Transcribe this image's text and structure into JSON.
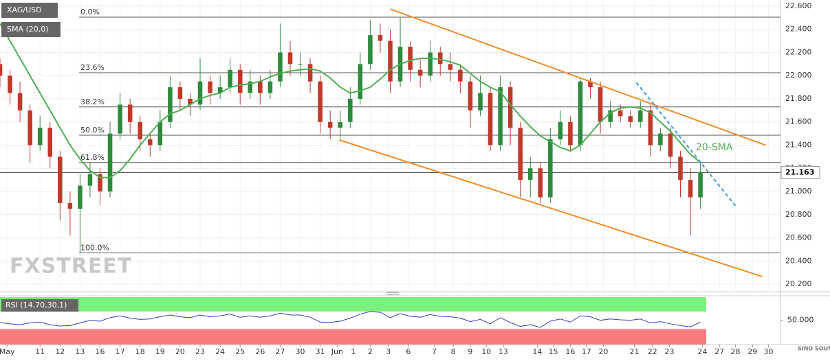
{
  "chart_data": {
    "type": "candlestick",
    "title": "XAG/USD",
    "indicator_label": "SMA (20,0)",
    "annotation": "20-SMA",
    "watermark": "FXSTREET",
    "logo": "SINO SOUND",
    "xlim": [
      0,
      78
    ],
    "xticks": [
      {
        "value": 0.7,
        "label": "May"
      },
      {
        "value": 4,
        "label": "11"
      },
      {
        "value": 6,
        "label": "12"
      },
      {
        "value": 8,
        "label": "13"
      },
      {
        "value": 10,
        "label": "16"
      },
      {
        "value": 12,
        "label": "17"
      },
      {
        "value": 14,
        "label": "18"
      },
      {
        "value": 16,
        "label": "19"
      },
      {
        "value": 18,
        "label": "20"
      },
      {
        "value": 20,
        "label": "23"
      },
      {
        "value": 22,
        "label": "24"
      },
      {
        "value": 24,
        "label": "25"
      },
      {
        "value": 26,
        "label": "26"
      },
      {
        "value": 28,
        "label": "27"
      },
      {
        "value": 30,
        "label": "30"
      },
      {
        "value": 32,
        "label": "31"
      },
      {
        "value": 33.7,
        "label": "Jun"
      },
      {
        "value": 35.3,
        "label": "1"
      },
      {
        "value": 37,
        "label": "2"
      },
      {
        "value": 38.8,
        "label": "3"
      },
      {
        "value": 40.8,
        "label": "6"
      },
      {
        "value": 43.4,
        "label": "7"
      },
      {
        "value": 45.3,
        "label": "8"
      },
      {
        "value": 47,
        "label": "9"
      },
      {
        "value": 48.6,
        "label": "10"
      },
      {
        "value": 50.3,
        "label": "13"
      },
      {
        "value": 53.7,
        "label": "14"
      },
      {
        "value": 55.3,
        "label": "15"
      },
      {
        "value": 57,
        "label": "16"
      },
      {
        "value": 58.6,
        "label": "17"
      },
      {
        "value": 60.3,
        "label": "20"
      },
      {
        "value": 63.4,
        "label": "21"
      },
      {
        "value": 65.2,
        "label": "22"
      },
      {
        "value": 66.9,
        "label": "23"
      },
      {
        "value": 70.2,
        "label": "24"
      },
      {
        "value": 71.9,
        "label": "27"
      },
      {
        "value": 73.5,
        "label": "28"
      },
      {
        "value": 75.2,
        "label": "29"
      },
      {
        "value": 76.8,
        "label": "30"
      }
    ],
    "ylim": [
      20.135,
      22.653
    ],
    "yticks": [
      {
        "value": 22.6,
        "label": "22.600"
      },
      {
        "value": 22.4,
        "label": "22.400"
      },
      {
        "value": 22.2,
        "label": "22.200"
      },
      {
        "value": 22.0,
        "label": "22.000"
      },
      {
        "value": 21.8,
        "label": "21.800"
      },
      {
        "value": 21.6,
        "label": "21.600"
      },
      {
        "value": 21.4,
        "label": "21.400"
      },
      {
        "value": 21.2,
        "label": "21.200"
      },
      {
        "value": 21.0,
        "label": "21.000"
      },
      {
        "value": 20.8,
        "label": "20.800"
      },
      {
        "value": 20.6,
        "label": "20.600"
      },
      {
        "value": 20.4,
        "label": "20.400"
      },
      {
        "value": 20.2,
        "label": "20.200"
      }
    ],
    "grid": true,
    "up_color": "#2e8b3e",
    "down_color": "#c0392b",
    "candles": [
      [
        22.1,
        22.15,
        21.9,
        22.0
      ],
      [
        22.0,
        22.05,
        21.75,
        21.85
      ],
      [
        21.85,
        21.95,
        21.6,
        21.7
      ],
      [
        21.7,
        21.75,
        21.25,
        21.4
      ],
      [
        21.4,
        21.65,
        21.35,
        21.55
      ],
      [
        21.55,
        21.6,
        21.2,
        21.3
      ],
      [
        21.3,
        21.35,
        20.75,
        20.9
      ],
      [
        20.9,
        21.0,
        20.62,
        20.85
      ],
      [
        20.85,
        21.15,
        20.47,
        21.05
      ],
      [
        21.05,
        21.25,
        20.95,
        21.15
      ],
      [
        21.15,
        21.2,
        20.88,
        21.0
      ],
      [
        21.0,
        21.6,
        20.95,
        21.5
      ],
      [
        21.5,
        21.85,
        21.45,
        21.75
      ],
      [
        21.75,
        21.8,
        21.5,
        21.6
      ],
      [
        21.6,
        21.65,
        21.35,
        21.45
      ],
      [
        21.45,
        21.5,
        21.3,
        21.4
      ],
      [
        21.4,
        21.7,
        21.35,
        21.6
      ],
      [
        21.6,
        22.0,
        21.55,
        21.9
      ],
      [
        21.9,
        21.95,
        21.7,
        21.8
      ],
      [
        21.8,
        21.85,
        21.65,
        21.75
      ],
      [
        21.75,
        22.15,
        21.7,
        21.95
      ],
      [
        21.95,
        22.0,
        21.75,
        21.85
      ],
      [
        21.85,
        22.0,
        21.8,
        21.9
      ],
      [
        21.9,
        22.15,
        21.85,
        22.05
      ],
      [
        22.05,
        22.1,
        21.75,
        21.85
      ],
      [
        21.85,
        22.05,
        21.8,
        21.95
      ],
      [
        21.95,
        22.0,
        21.75,
        21.85
      ],
      [
        21.85,
        22.05,
        21.8,
        21.95
      ],
      [
        21.95,
        22.45,
        21.9,
        22.2
      ],
      [
        22.2,
        22.3,
        22.0,
        22.1
      ],
      [
        22.1,
        22.2,
        22.0,
        22.1
      ],
      [
        22.1,
        22.15,
        21.85,
        21.95
      ],
      [
        21.95,
        22.0,
        21.5,
        21.6
      ],
      [
        21.6,
        21.7,
        21.45,
        21.55
      ],
      [
        21.55,
        21.7,
        21.45,
        21.6
      ],
      [
        21.6,
        21.9,
        21.55,
        21.8
      ],
      [
        21.8,
        22.2,
        21.75,
        22.1
      ],
      [
        22.1,
        22.48,
        22.05,
        22.35
      ],
      [
        22.35,
        22.45,
        22.2,
        22.3
      ],
      [
        22.3,
        22.4,
        21.85,
        21.95
      ],
      [
        21.95,
        22.5,
        21.9,
        22.25
      ],
      [
        22.25,
        22.3,
        21.95,
        22.05
      ],
      [
        22.05,
        22.15,
        21.9,
        22.0
      ],
      [
        22.0,
        22.3,
        21.95,
        22.2
      ],
      [
        22.2,
        22.25,
        22.0,
        22.1
      ],
      [
        22.1,
        22.2,
        21.95,
        22.05
      ],
      [
        22.05,
        22.1,
        21.85,
        21.95
      ],
      [
        21.95,
        22.0,
        21.55,
        21.7
      ],
      [
        21.7,
        22.0,
        21.65,
        21.85
      ],
      [
        21.85,
        21.9,
        21.35,
        21.4
      ],
      [
        21.4,
        22.0,
        21.35,
        21.9
      ],
      [
        21.9,
        21.95,
        21.4,
        21.55
      ],
      [
        21.55,
        21.6,
        20.95,
        21.1
      ],
      [
        21.1,
        21.3,
        20.95,
        21.2
      ],
      [
        21.2,
        21.25,
        20.9,
        20.95
      ],
      [
        20.95,
        21.55,
        20.9,
        21.45
      ],
      [
        21.45,
        21.7,
        21.4,
        21.6
      ],
      [
        21.6,
        21.65,
        21.35,
        21.4
      ],
      [
        21.4,
        21.98,
        21.35,
        21.95
      ],
      [
        21.95,
        21.98,
        21.8,
        21.9
      ],
      [
        21.9,
        21.95,
        21.5,
        21.6
      ],
      [
        21.6,
        21.78,
        21.55,
        21.7
      ],
      [
        21.7,
        21.75,
        21.6,
        21.65
      ],
      [
        21.65,
        21.7,
        21.55,
        21.6
      ],
      [
        21.6,
        21.78,
        21.55,
        21.7
      ],
      [
        21.7,
        21.75,
        21.3,
        21.4
      ],
      [
        21.4,
        21.55,
        21.35,
        21.5
      ],
      [
        21.5,
        21.55,
        21.2,
        21.3
      ],
      [
        21.3,
        21.35,
        20.95,
        21.1
      ],
      [
        21.1,
        21.2,
        20.62,
        20.95
      ],
      [
        20.95,
        21.25,
        20.85,
        21.163
      ]
    ],
    "sma": {
      "color": "#4caf50",
      "values": [
        22.45,
        22.3,
        22.15,
        22.0,
        21.85,
        21.7,
        21.55,
        21.4,
        21.28,
        21.18,
        21.12,
        21.12,
        21.18,
        21.28,
        21.4,
        21.5,
        21.6,
        21.67,
        21.7,
        21.75,
        21.8,
        21.83,
        21.85,
        21.9,
        21.92,
        21.93,
        21.95,
        21.99,
        22.02,
        22.04,
        22.05,
        22.06,
        22.04,
        21.98,
        21.9,
        21.85,
        21.87,
        21.9,
        21.97,
        22.05,
        22.1,
        22.13,
        22.15,
        22.15,
        22.14,
        22.12,
        22.09,
        22.02,
        21.95,
        21.9,
        21.86,
        21.75,
        21.65,
        21.56,
        21.48,
        21.43,
        21.38,
        21.35,
        21.4,
        21.5,
        21.6,
        21.68,
        21.72,
        21.73,
        21.72,
        21.68,
        21.6,
        21.52,
        21.42,
        21.32,
        21.25
      ]
    },
    "fibonacci": [
      {
        "label": "0.0%",
        "value": 22.505
      },
      {
        "label": "23.6%",
        "value": 22.025
      },
      {
        "label": "38.2%",
        "value": 21.73
      },
      {
        "label": "50.0%",
        "value": 21.486
      },
      {
        "label": "61.8%",
        "value": 21.25
      },
      {
        "label": "100.0%",
        "value": 20.47
      }
    ],
    "last_price": {
      "value": 21.163,
      "label": "21.163"
    },
    "trendlines": [
      {
        "color": "#f28c28",
        "dashed": false,
        "x": [
          39,
          76.5
        ],
        "y": [
          22.575,
          21.4
        ]
      },
      {
        "color": "#f28c28",
        "dashed": false,
        "x": [
          33.9,
          76.2
        ],
        "y": [
          21.445,
          20.265
        ]
      },
      {
        "color": "#3a9ad9",
        "dashed": true,
        "x": [
          63.6,
          73.5
        ],
        "y": [
          21.94,
          20.876
        ]
      }
    ],
    "rsi": {
      "label": "RSI (14,70,30,1)",
      "color": "#2c3fbf",
      "ylim": [
        -5,
        104
      ],
      "overbought": 70,
      "oversold": 30,
      "yticks": [
        {
          "value": 50,
          "label": "50.000"
        }
      ],
      "values": [
        45,
        42,
        40,
        44,
        46,
        40,
        37,
        38,
        44,
        50,
        48,
        56,
        60,
        55,
        52,
        53,
        58,
        62,
        58,
        56,
        62,
        58,
        60,
        64,
        57,
        60,
        57,
        60,
        66,
        62,
        62,
        57,
        46,
        45,
        48,
        55,
        64,
        70,
        68,
        56,
        65,
        59,
        57,
        63,
        59,
        58,
        55,
        47,
        52,
        42,
        56,
        45,
        36,
        40,
        34,
        48,
        53,
        46,
        60,
        58,
        50,
        53,
        51,
        50,
        53,
        44,
        47,
        42,
        38,
        35,
        46
      ]
    }
  }
}
